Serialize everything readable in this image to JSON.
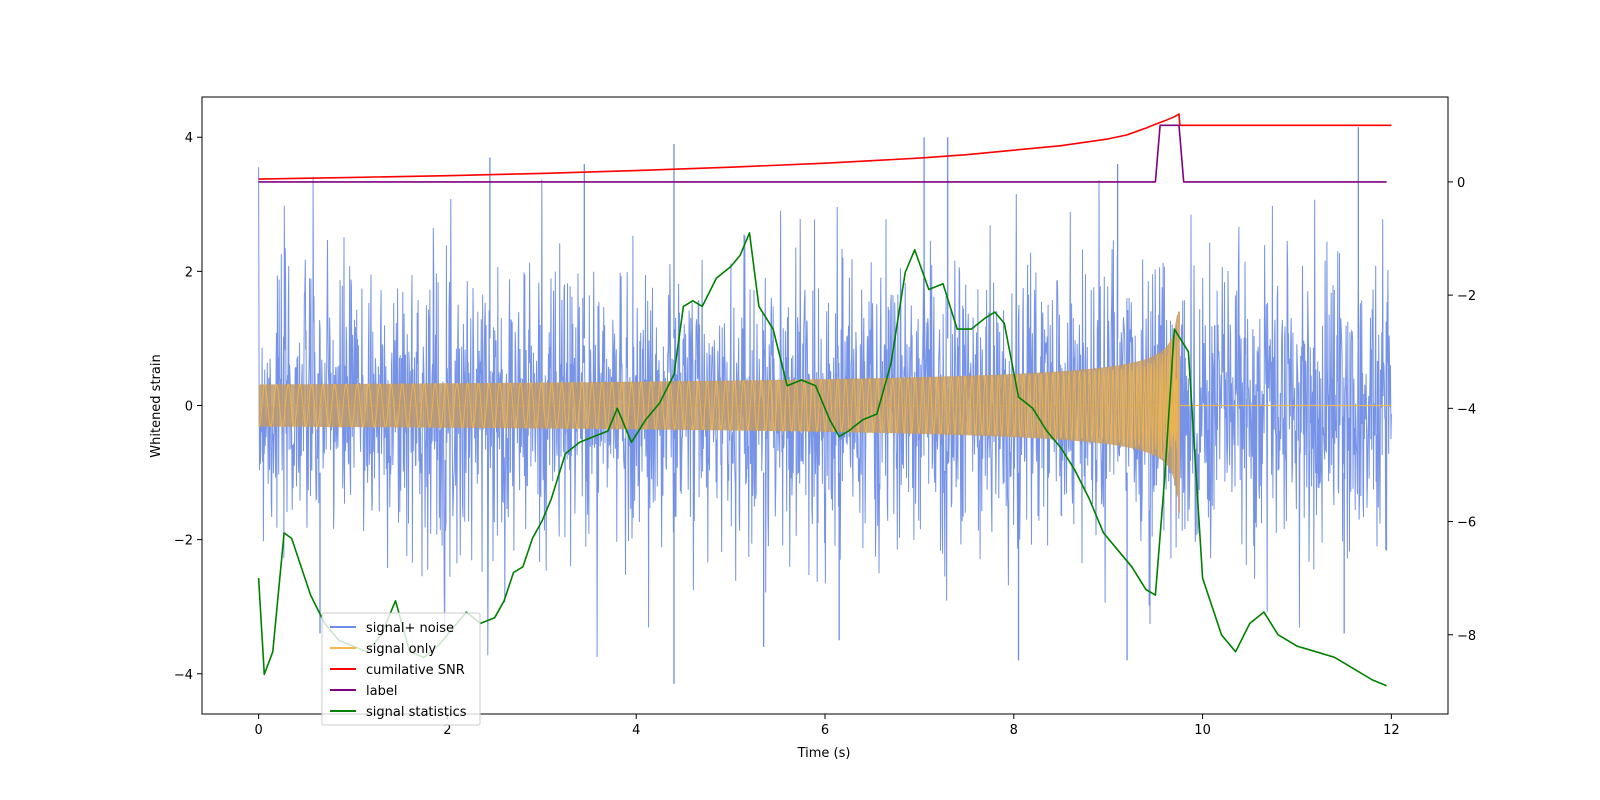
{
  "chart_data": {
    "type": "line",
    "title": "",
    "xlabel": "Time (s)",
    "ylabel_left": "Whitened strain",
    "ylabel_right": "",
    "xlim": [
      -0.6,
      12.6
    ],
    "ylim_left": [
      -4.6,
      4.6
    ],
    "ylim_right": [
      -9.4,
      1.5
    ],
    "x_ticks": [
      0,
      2,
      4,
      6,
      8,
      10,
      12
    ],
    "y_ticks_left": [
      -4,
      -2,
      0,
      2,
      4
    ],
    "y_ticks_right": [
      -8,
      -6,
      -4,
      -2,
      0
    ],
    "grid": false,
    "legend_position": "lower-left",
    "noise": {
      "name": "signal+ noise",
      "color": "#6f8de6",
      "axis": "left",
      "x_range": [
        0,
        12
      ],
      "envelope_typical": [
        -2.2,
        2.2
      ],
      "notable_peaks": [
        {
          "x": 4.4,
          "y": 3.9
        },
        {
          "x": 7.05,
          "y": 4.0
        },
        {
          "x": 7.3,
          "y": 4.0
        },
        {
          "x": 11.65,
          "y": 4.15
        },
        {
          "x": 2.45,
          "y": 3.7
        },
        {
          "x": 3.45,
          "y": 3.6
        },
        {
          "x": 9.1,
          "y": 3.6
        },
        {
          "x": 4.4,
          "y": -4.15
        },
        {
          "x": 8.05,
          "y": -3.8
        },
        {
          "x": 9.2,
          "y": -3.8
        },
        {
          "x": 5.35,
          "y": -3.6
        },
        {
          "x": 6.15,
          "y": -3.5
        },
        {
          "x": 0.65,
          "y": -3.4
        },
        {
          "x": 11.5,
          "y": -3.4
        }
      ]
    },
    "chirp": {
      "name": "signal only",
      "color": "#f5b84a",
      "axis": "left",
      "merge_time": 9.75,
      "amplitude_start": 0.02,
      "amplitude_peak": 1.4,
      "end_value": 0
    },
    "series": [
      {
        "name": "cumilative SNR",
        "color": "#ff0000",
        "axis": "right",
        "x": [
          0,
          1,
          2,
          3,
          4,
          5,
          6,
          7,
          7.5,
          8,
          8.5,
          9,
          9.2,
          9.4,
          9.5,
          9.6,
          9.7,
          9.75,
          9.76,
          12
        ],
        "y": [
          0.05,
          0.08,
          0.11,
          0.15,
          0.2,
          0.26,
          0.33,
          0.42,
          0.48,
          0.56,
          0.64,
          0.76,
          0.83,
          0.95,
          1.02,
          1.08,
          1.15,
          1.2,
          1.0,
          1.0
        ]
      },
      {
        "name": "label",
        "color": "#800080",
        "axis": "right",
        "x": [
          0,
          9.5,
          9.55,
          9.75,
          9.8,
          11.95
        ],
        "y": [
          0,
          0,
          1,
          1,
          0,
          0
        ]
      },
      {
        "name": "signal statistics",
        "color": "#008000",
        "axis": "right",
        "x": [
          0,
          0.06,
          0.15,
          0.27,
          0.35,
          0.45,
          0.55,
          0.7,
          0.85,
          1.0,
          1.15,
          1.3,
          1.45,
          1.6,
          1.75,
          1.9,
          2.05,
          2.2,
          2.35,
          2.5,
          2.6,
          2.7,
          2.8,
          2.9,
          3.0,
          3.1,
          3.25,
          3.4,
          3.55,
          3.7,
          3.8,
          3.95,
          4.1,
          4.25,
          4.4,
          4.5,
          4.6,
          4.7,
          4.85,
          5.0,
          5.1,
          5.2,
          5.3,
          5.45,
          5.6,
          5.75,
          5.9,
          6.05,
          6.15,
          6.25,
          6.4,
          6.55,
          6.7,
          6.85,
          6.95,
          7.1,
          7.25,
          7.4,
          7.55,
          7.7,
          7.8,
          7.9,
          8.05,
          8.2,
          8.35,
          8.5,
          8.65,
          8.8,
          8.95,
          9.1,
          9.25,
          9.4,
          9.5,
          9.6,
          9.7,
          9.85,
          10.0,
          10.2,
          10.35,
          10.5,
          10.65,
          10.8,
          11.0,
          11.2,
          11.4,
          11.6,
          11.8,
          11.95
        ],
        "y": [
          -7.0,
          -8.7,
          -8.3,
          -6.2,
          -6.3,
          -6.8,
          -7.3,
          -7.8,
          -8.1,
          -8.2,
          -8.3,
          -8.0,
          -7.4,
          -8.3,
          -8.4,
          -8.2,
          -7.9,
          -7.6,
          -7.8,
          -7.7,
          -7.4,
          -6.9,
          -6.8,
          -6.3,
          -6.0,
          -5.6,
          -4.8,
          -4.6,
          -4.5,
          -4.4,
          -4.0,
          -4.6,
          -4.2,
          -3.9,
          -3.4,
          -2.2,
          -2.1,
          -2.2,
          -1.7,
          -1.5,
          -1.3,
          -0.9,
          -2.2,
          -2.6,
          -3.6,
          -3.5,
          -3.6,
          -4.2,
          -4.5,
          -4.4,
          -4.2,
          -4.1,
          -3.2,
          -1.6,
          -1.2,
          -1.9,
          -1.8,
          -2.6,
          -2.6,
          -2.4,
          -2.3,
          -2.5,
          -3.8,
          -4.0,
          -4.4,
          -4.7,
          -5.1,
          -5.6,
          -6.2,
          -6.5,
          -6.8,
          -7.2,
          -7.3,
          -5.2,
          -2.6,
          -3.0,
          -7.0,
          -8.0,
          -8.3,
          -7.8,
          -7.6,
          -8.0,
          -8.2,
          -8.3,
          -8.4,
          -8.6,
          -8.8,
          -8.9
        ]
      }
    ],
    "legend": [
      "signal+ noise",
      "signal only",
      "cumilative SNR",
      "label",
      "signal statistics"
    ]
  }
}
